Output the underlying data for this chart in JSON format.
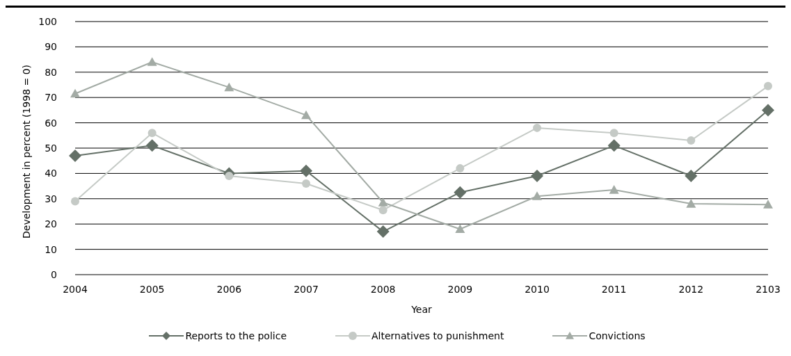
{
  "chart_data": {
    "type": "line",
    "xlabel": "Year",
    "ylabel": "Development in percent (1998 = 0)",
    "categories": [
      "2004",
      "2005",
      "2006",
      "2007",
      "2008",
      "2009",
      "2010",
      "2011",
      "2012",
      "2103"
    ],
    "series": [
      {
        "name": "Reports to the police",
        "color": "#647067",
        "marker": "diamond",
        "values": [
          47,
          51,
          40,
          41,
          17,
          32.5,
          39,
          51,
          39,
          65
        ]
      },
      {
        "name": "Alternatives to punishment",
        "color": "#c5cac6",
        "marker": "circle",
        "values": [
          29,
          56,
          39,
          36,
          25.5,
          42,
          58,
          56,
          53,
          74.5
        ]
      },
      {
        "name": "Convictions",
        "color": "#a3aba5",
        "marker": "triangle",
        "values": [
          71.5,
          84,
          74,
          63,
          28.5,
          18,
          31,
          33.5,
          28,
          27.7
        ]
      }
    ],
    "ylim": [
      0,
      100
    ],
    "yticks": [
      0,
      10,
      20,
      30,
      40,
      50,
      60,
      70,
      80,
      90,
      100
    ],
    "grid": "y",
    "legend": "bottom",
    "line_style": "solid"
  }
}
